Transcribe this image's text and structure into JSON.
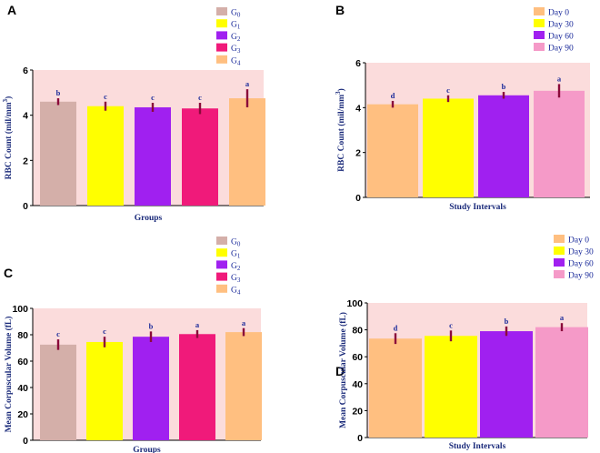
{
  "chart_data": [
    {
      "panel": "A",
      "type": "bar",
      "categories": [
        "G0",
        "G1",
        "G2",
        "G3",
        "G4"
      ],
      "values": [
        4.6,
        4.4,
        4.35,
        4.3,
        4.75
      ],
      "errors": [
        0.15,
        0.2,
        0.2,
        0.25,
        0.4
      ],
      "significance": [
        "b",
        "c",
        "c",
        "c",
        "a"
      ],
      "colors": [
        "#d4afa9",
        "#ffff00",
        "#a020f0",
        "#f01a7a",
        "#ffbf80"
      ],
      "legend": [
        {
          "base": "G",
          "sub": "0"
        },
        {
          "base": "G",
          "sub": "1"
        },
        {
          "base": "G",
          "sub": "2"
        },
        {
          "base": "G",
          "sub": "3"
        },
        {
          "base": "G",
          "sub": "4"
        }
      ],
      "xlabel": "Groups",
      "ylabel": "RBC Count (mil/mm3)",
      "ylabel_parts": {
        "text": "RBC Count (mil/mm",
        "sup": "3",
        "close": ")"
      },
      "ylim": [
        0,
        6
      ],
      "yticks": [
        0,
        2,
        4,
        6
      ],
      "legend_position": "top-right"
    },
    {
      "panel": "B",
      "type": "bar",
      "categories": [
        "Day 0",
        "Day 30",
        "Day 60",
        "Day 90"
      ],
      "values": [
        4.15,
        4.4,
        4.55,
        4.75
      ],
      "errors": [
        0.15,
        0.15,
        0.15,
        0.3
      ],
      "significance": [
        "d",
        "c",
        "b",
        "a"
      ],
      "colors": [
        "#ffbf80",
        "#ffff00",
        "#a020f0",
        "#f59ac8"
      ],
      "legend": [
        {
          "base": "Day 0"
        },
        {
          "base": "Day 30"
        },
        {
          "base": "Day 60"
        },
        {
          "base": "Day 90"
        }
      ],
      "xlabel": "Study Intervals",
      "ylabel": "RBC Count (mil/mm3)",
      "ylabel_parts": {
        "text": "RBC Count (mil/mm",
        "sup": "3",
        "close": ")"
      },
      "ylim": [
        0,
        6
      ],
      "yticks": [
        0,
        2,
        4,
        6
      ],
      "legend_position": "top-right"
    },
    {
      "panel": "C",
      "type": "bar",
      "categories": [
        "G0",
        "G1",
        "G2",
        "G3",
        "G4"
      ],
      "values": [
        72.5,
        74.5,
        78.5,
        80.5,
        82
      ],
      "errors": [
        4,
        4,
        4,
        3,
        3
      ],
      "significance": [
        "c",
        "c",
        "b",
        "a",
        "a"
      ],
      "colors": [
        "#d4afa9",
        "#ffff00",
        "#a020f0",
        "#f01a7a",
        "#ffbf80"
      ],
      "legend": [
        {
          "base": "G",
          "sub": "0"
        },
        {
          "base": "G",
          "sub": "1"
        },
        {
          "base": "G",
          "sub": "2"
        },
        {
          "base": "G",
          "sub": "3"
        },
        {
          "base": "G",
          "sub": "4"
        }
      ],
      "xlabel": "Groups",
      "ylabel": "Mean Corpuscular Volume (fL)",
      "ylim": [
        0,
        100
      ],
      "yticks": [
        0,
        20,
        40,
        60,
        80,
        100
      ],
      "legend_position": "top-right"
    },
    {
      "panel": "D",
      "type": "bar",
      "categories": [
        "Day 0",
        "Day 30",
        "Day 60",
        "Day 90"
      ],
      "values": [
        73.5,
        75.5,
        79,
        82
      ],
      "errors": [
        4,
        4,
        3.5,
        3
      ],
      "significance": [
        "d",
        "c",
        "b",
        "a"
      ],
      "colors": [
        "#ffbf80",
        "#ffff00",
        "#a020f0",
        "#f59ac8"
      ],
      "legend": [
        {
          "base": "Day 0"
        },
        {
          "base": "Day 30"
        },
        {
          "base": "Day 60"
        },
        {
          "base": "Day 90"
        }
      ],
      "xlabel": "Study Intervals",
      "ylabel": "Mean Corpuscular Volume (fL)",
      "ylim": [
        0,
        100
      ],
      "yticks": [
        0,
        20,
        40,
        60,
        80,
        100
      ],
      "legend_position": "top-right"
    }
  ],
  "style": {
    "plot_bg": "#fbdcdc",
    "error_bar": "#8b0a3a",
    "sig_color": "#1a2a9a",
    "axis_title_color": "#1a2a7a"
  }
}
